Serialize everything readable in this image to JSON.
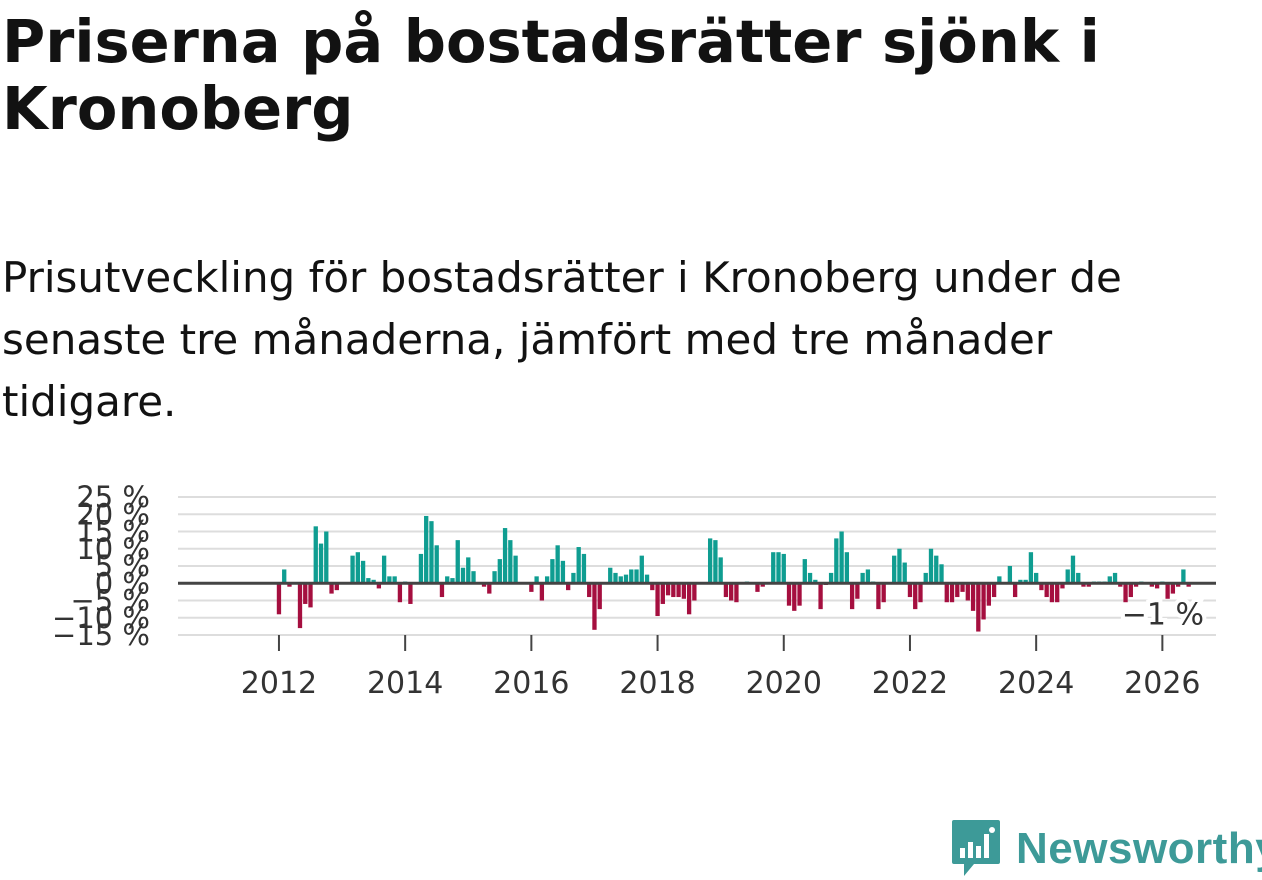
{
  "title": "Priserna på bostadsrätter sjönk i Kronoberg",
  "subtitle": "Prisutveckling för bostadsrätter i Kronoberg under de senaste tre månaderna, jämfört med tre månader tidigare.",
  "brand": "Newsworthy",
  "colors": {
    "positive": "#0f9d91",
    "negative": "#a50f3f",
    "zero_line": "#444444",
    "grid": "#dddddd",
    "brand": "#3d9a98"
  },
  "chart_data": {
    "type": "bar",
    "x_start": 2011.0,
    "x_step_months": 1,
    "xlim": [
      2010.4,
      2026.85
    ],
    "ylim": [
      -15,
      25
    ],
    "yticks": [
      {
        "value": 25,
        "label": "25 %"
      },
      {
        "value": 20,
        "label": "20 %"
      },
      {
        "value": 15,
        "label": "15 %"
      },
      {
        "value": 10,
        "label": "10 %"
      },
      {
        "value": 5,
        "label": "5 %"
      },
      {
        "value": 0,
        "label": "0 %"
      },
      {
        "value": -5,
        "label": "−5 %"
      },
      {
        "value": -10,
        "label": "−10 %"
      },
      {
        "value": -15,
        "label": "−15 %"
      }
    ],
    "xticks": [
      {
        "value": 2012,
        "label": "2012"
      },
      {
        "value": 2014,
        "label": "2014"
      },
      {
        "value": 2016,
        "label": "2016"
      },
      {
        "value": 2018,
        "label": "2018"
      },
      {
        "value": 2020,
        "label": "2020"
      },
      {
        "value": 2022,
        "label": "2022"
      },
      {
        "value": 2024,
        "label": "2024"
      },
      {
        "value": 2026,
        "label": "2026"
      }
    ],
    "last_value_label": "−1 %",
    "values": [
      0,
      0,
      0,
      0,
      0,
      0,
      0,
      0,
      0,
      0,
      0,
      0,
      -9,
      4,
      -1,
      0,
      -13,
      -6,
      -7,
      16.5,
      11.5,
      15,
      -3,
      -2,
      0,
      0,
      8,
      9,
      6.5,
      1.5,
      1,
      -1.5,
      8,
      2,
      2,
      -5.5,
      0.5,
      -6,
      0,
      8.5,
      19.5,
      18,
      11,
      -4,
      2,
      1.5,
      12.5,
      4.5,
      7.5,
      3.5,
      0,
      -1,
      -3,
      3.5,
      7,
      16,
      12.5,
      8,
      0,
      0,
      -2.5,
      2,
      -5,
      2,
      7,
      11,
      6.5,
      -2,
      3,
      10.5,
      8.5,
      -4,
      -13.5,
      -7.5,
      0,
      4.5,
      3,
      2,
      2.5,
      4,
      4,
      8,
      2.5,
      -2,
      -9.5,
      -6,
      -3.5,
      -4,
      -4,
      -4.5,
      -9,
      -5,
      0,
      0,
      13,
      12.5,
      7.5,
      -4,
      -5,
      -5.5,
      0,
      0.5,
      0,
      -2.5,
      -1,
      0,
      9,
      9,
      8.5,
      -6.5,
      -8,
      -6.5,
      7,
      3,
      1,
      -7.5,
      -0.5,
      3,
      13,
      15,
      9,
      -7.5,
      -4.5,
      3,
      4,
      0.5,
      -7.5,
      -5.5,
      0,
      8,
      10,
      6,
      -4,
      -7.5,
      -5.5,
      3,
      10,
      8,
      5.5,
      -5.5,
      -5.5,
      -4,
      -2.5,
      -5,
      -8,
      -14,
      -10.5,
      -6.5,
      -4,
      2,
      0,
      5,
      -4,
      1,
      1,
      9,
      3,
      -2,
      -4,
      -5.5,
      -5.5,
      -1.5,
      4,
      8,
      3,
      -1,
      -1,
      0.5,
      0.5,
      0.5,
      2,
      3,
      -1,
      -5.5,
      -4,
      -1,
      0.5,
      0,
      -1,
      -1.5,
      0.5,
      -4.5,
      -3,
      -1,
      4,
      -1
    ]
  }
}
